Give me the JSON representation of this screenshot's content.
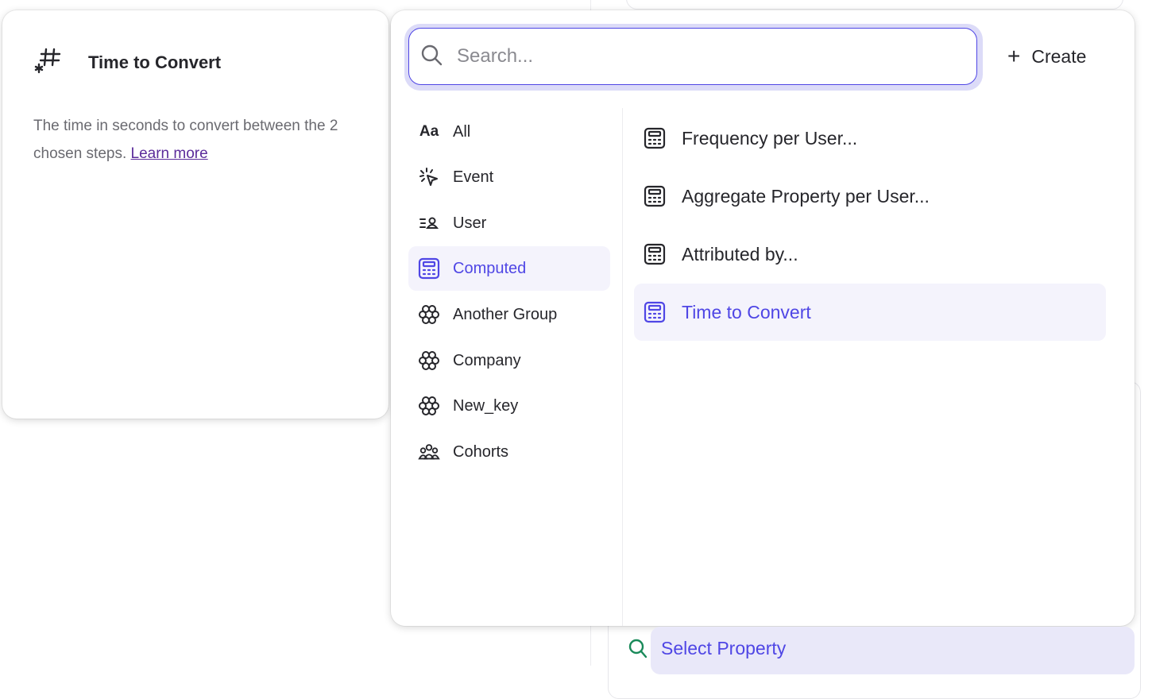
{
  "info_panel": {
    "title": "Time to Convert",
    "icon": "hash-asterisk-icon",
    "description": "The time in seconds to convert between the 2 chosen steps.",
    "learn_more": "Learn more"
  },
  "search": {
    "placeholder": "Search...",
    "value": ""
  },
  "create_label": "Create",
  "categories": [
    {
      "label": "All",
      "icon": "text-aa-icon"
    },
    {
      "label": "Event",
      "icon": "cursor-click-icon"
    },
    {
      "label": "User",
      "icon": "user-list-icon"
    },
    {
      "label": "Computed",
      "icon": "calculator-icon",
      "selected": true
    },
    {
      "label": "Another Group",
      "icon": "group-flower-icon"
    },
    {
      "label": "Company",
      "icon": "group-flower-icon"
    },
    {
      "label": "New_key",
      "icon": "group-flower-icon"
    },
    {
      "label": "Cohorts",
      "icon": "cohorts-icon"
    }
  ],
  "items": [
    {
      "label": "Frequency per User..."
    },
    {
      "label": "Aggregate Property per User..."
    },
    {
      "label": "Attributed by..."
    },
    {
      "label": "Time to Convert",
      "selected": true
    }
  ],
  "select_property": "Select Property",
  "colors": {
    "accent": "#4f46e5",
    "selected_bg": "#f4f3fc",
    "link": "#5b2b9a",
    "search_icon_green": "#1a8a5a"
  }
}
